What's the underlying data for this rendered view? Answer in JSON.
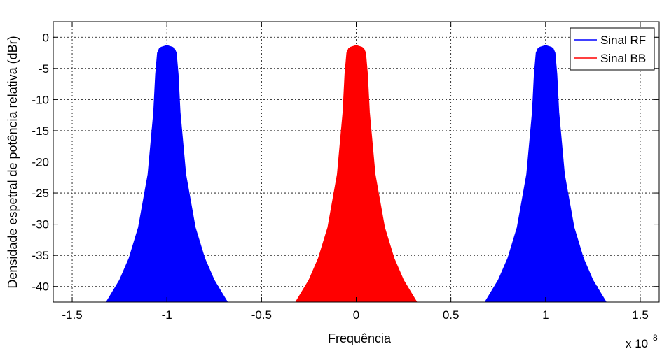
{
  "chart_data": {
    "type": "area",
    "title": "",
    "xlabel": "Frequência",
    "ylabel": "Densidade espetral de potência relativa (dBr)",
    "x_exponent_label": "x 10",
    "x_exponent": "8",
    "xlim": [
      -1.6,
      1.6
    ],
    "ylim": [
      -42.5,
      2.5
    ],
    "x_ticks": [
      -1.5,
      -1,
      -0.5,
      0,
      0.5,
      1,
      1.5
    ],
    "x_tick_labels": [
      "-1.5",
      "-1",
      "-0.5",
      "0",
      "0.5",
      "1",
      "1.5"
    ],
    "y_ticks": [
      0,
      -5,
      -10,
      -15,
      -20,
      -25,
      -30,
      -35,
      -40
    ],
    "y_tick_labels": [
      "0",
      "-5",
      "-10",
      "-15",
      "-20",
      "-25",
      "-30",
      "-35",
      "-40"
    ],
    "grid": true,
    "legend_position": "top-right",
    "series": [
      {
        "name": "Sinal RF",
        "color": "#0000ff",
        "lobes": [
          {
            "x": [
              -1.32,
              -1.3,
              -1.25,
              -1.2,
              -1.15,
              -1.1,
              -1.07,
              -1.06,
              -1.05,
              -1.04,
              -1.03,
              -1.02,
              -1.0,
              -0.98,
              -0.97,
              -0.96,
              -0.95,
              -0.94,
              -0.93,
              -0.9,
              -0.85,
              -0.8,
              -0.75,
              -0.7,
              -0.68
            ],
            "y": [
              -42.5,
              -41.5,
              -39,
              -35.5,
              -30.5,
              -22,
              -12,
              -6,
              -2.5,
              -1.8,
              -1.6,
              -1.5,
              -1.3,
              -1.5,
              -1.6,
              -1.8,
              -2.5,
              -6,
              -12,
              -22,
              -30.5,
              -35.5,
              -39,
              -41.5,
              -42.5
            ]
          },
          {
            "x": [
              0.68,
              0.7,
              0.75,
              0.8,
              0.85,
              0.9,
              0.93,
              0.94,
              0.95,
              0.96,
              0.97,
              0.98,
              1.0,
              1.02,
              1.03,
              1.04,
              1.05,
              1.06,
              1.07,
              1.1,
              1.15,
              1.2,
              1.25,
              1.3,
              1.32
            ],
            "y": [
              -42.5,
              -41.5,
              -39,
              -35.5,
              -30.5,
              -22,
              -12,
              -6,
              -2.5,
              -1.8,
              -1.6,
              -1.5,
              -1.3,
              -1.5,
              -1.6,
              -1.8,
              -2.5,
              -6,
              -12,
              -22,
              -30.5,
              -35.5,
              -39,
              -41.5,
              -42.5
            ]
          }
        ]
      },
      {
        "name": "Sinal BB",
        "color": "#ff0000",
        "lobes": [
          {
            "x": [
              -0.32,
              -0.3,
              -0.25,
              -0.2,
              -0.15,
              -0.1,
              -0.07,
              -0.06,
              -0.05,
              -0.04,
              -0.03,
              -0.02,
              0.0,
              0.02,
              0.03,
              0.04,
              0.05,
              0.06,
              0.07,
              0.1,
              0.15,
              0.2,
              0.25,
              0.3,
              0.32
            ],
            "y": [
              -42.5,
              -41.5,
              -39,
              -35.5,
              -30.5,
              -22,
              -12,
              -6,
              -2.5,
              -1.8,
              -1.6,
              -1.5,
              -1.3,
              -1.5,
              -1.6,
              -1.8,
              -2.5,
              -6,
              -12,
              -22,
              -30.5,
              -35.5,
              -39,
              -41.5,
              -42.5
            ]
          }
        ]
      }
    ]
  }
}
